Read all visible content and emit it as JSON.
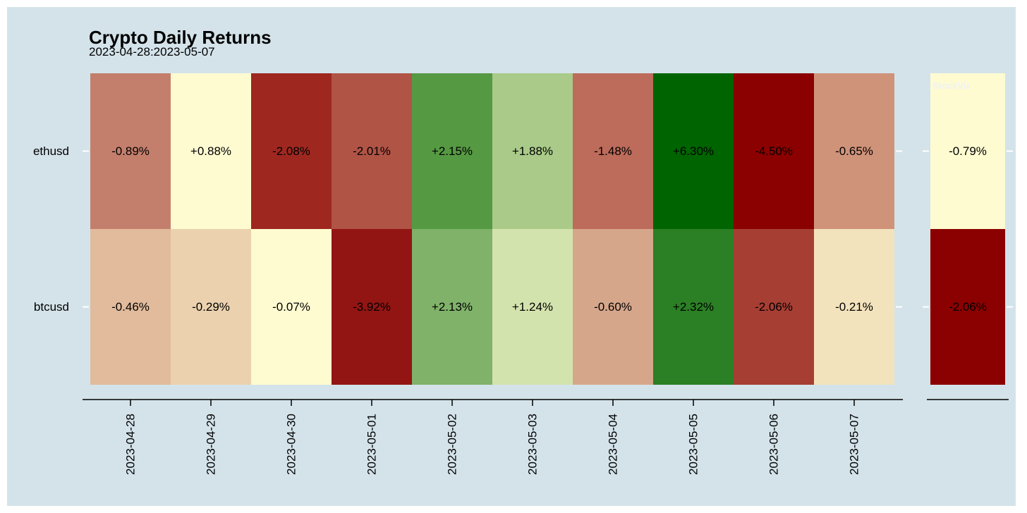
{
  "chart_data": {
    "type": "heatmap",
    "title": "Crypto Daily Returns",
    "subtitle": "2023-04-28:2023-05-07",
    "watermark": "StockViz",
    "rows": [
      "ethusd",
      "btcusd"
    ],
    "columns": [
      "2023-04-28",
      "2023-04-29",
      "2023-04-30",
      "2023-05-01",
      "2023-05-02",
      "2023-05-03",
      "2023-05-04",
      "2023-05-05",
      "2023-05-06",
      "2023-05-07"
    ],
    "values": [
      [
        -0.89,
        0.88,
        -2.08,
        -2.01,
        2.15,
        1.88,
        -1.48,
        6.3,
        -4.5,
        -0.65
      ],
      [
        -0.46,
        -0.29,
        -0.07,
        -3.92,
        2.13,
        1.24,
        -0.6,
        2.32,
        -2.06,
        -0.21
      ]
    ],
    "labels": [
      [
        "-0.89%",
        "+0.88%",
        "-2.08%",
        "-2.01%",
        "+2.15%",
        "+1.88%",
        "-1.48%",
        "+6.30%",
        "-4.50%",
        "-0.65%"
      ],
      [
        "-0.46%",
        "-0.29%",
        "-0.07%",
        "-3.92%",
        "+2.13%",
        "+1.24%",
        "-0.60%",
        "+2.32%",
        "-2.06%",
        "-0.21%"
      ]
    ],
    "colors": [
      [
        "#c47f6c",
        "#fffbd1",
        "#9e2820",
        "#b05446",
        "#569943",
        "#a9ca89",
        "#bd6b5a",
        "#006400",
        "#8b0000",
        "#cf937a"
      ],
      [
        "#e1bb9c",
        "#ebd1ae",
        "#fffbd1",
        "#921513",
        "#80b26a",
        "#d3e3ad",
        "#d6a68b",
        "#2b7f24",
        "#a63e34",
        "#f3e3bc"
      ]
    ],
    "total_panel": {
      "values": [
        -0.79,
        -2.06
      ],
      "labels": [
        "-0.79%",
        "-2.06%"
      ],
      "colors": [
        "#fffbd1",
        "#8b0000"
      ]
    },
    "grid": false,
    "legend": "none"
  }
}
